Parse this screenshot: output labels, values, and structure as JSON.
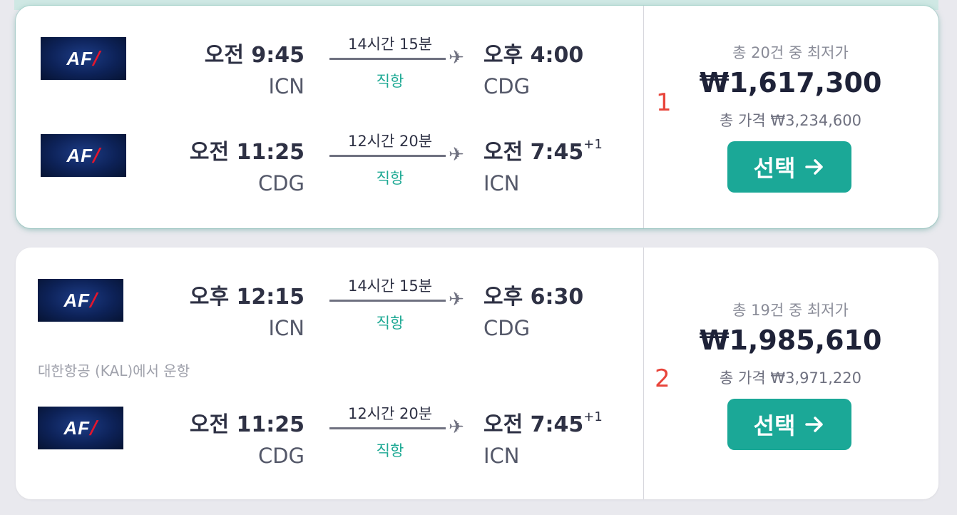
{
  "results": [
    {
      "rank": "1",
      "legs": [
        {
          "airline_logo": "AF",
          "dep_time": "오전 9:45",
          "dep_code": "ICN",
          "duration": "14시간 15분",
          "stops": "직항",
          "arr_time": "오후 4:00",
          "arr_offset": "",
          "arr_code": "CDG"
        },
        {
          "airline_logo": "AF",
          "dep_time": "오전 11:25",
          "dep_code": "CDG",
          "duration": "12시간 20분",
          "stops": "직항",
          "arr_time": "오전 7:45",
          "arr_offset": "+1",
          "arr_code": "ICN"
        }
      ],
      "operated_by": "",
      "price_label": "총 20건 중 최저가",
      "price": "₩1,617,300",
      "total_price": "총 가격 ₩3,234,600",
      "select_label": "선택"
    },
    {
      "rank": "2",
      "legs": [
        {
          "airline_logo": "AF",
          "dep_time": "오후 12:15",
          "dep_code": "ICN",
          "duration": "14시간 15분",
          "stops": "직항",
          "arr_time": "오후 6:30",
          "arr_offset": "",
          "arr_code": "CDG"
        },
        {
          "airline_logo": "AF",
          "dep_time": "오전 11:25",
          "dep_code": "CDG",
          "duration": "12시간 20분",
          "stops": "직항",
          "arr_time": "오전 7:45",
          "arr_offset": "+1",
          "arr_code": "ICN"
        }
      ],
      "operated_by": "대한항공 (KAL)에서 운항",
      "price_label": "총 19건 중 최저가",
      "price": "₩1,985,610",
      "total_price": "총 가격 ₩3,971,220",
      "select_label": "선택"
    }
  ],
  "icons": {
    "plane": "airplane-icon",
    "arrow": "arrow-right-icon"
  },
  "colors": {
    "accent": "#1ba897",
    "direct": "#1ea994",
    "rank": "#e8443a",
    "airline_logo_bg": "#0d2258",
    "airline_logo_slash": "#e4162d"
  }
}
